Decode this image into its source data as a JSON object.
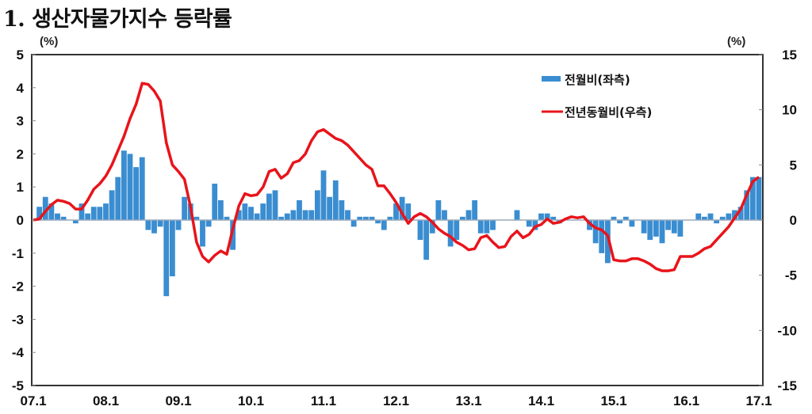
{
  "title": "1. 생산자물가지수 등락률",
  "units": {
    "left": "(%)",
    "right": "(%)"
  },
  "legend": [
    {
      "label": "전월비(좌측)",
      "color": "#3a8dd0",
      "type": "bar"
    },
    {
      "label": "전년동월비(우측)",
      "color": "#e8141b",
      "type": "line"
    }
  ],
  "chart_data": {
    "type": "bar+line",
    "title": "1. 생산자물가지수 등락률",
    "xlabel": "",
    "ylabel_left": "(%)",
    "ylabel_right": "(%)",
    "x_tick_labels": [
      "07.1",
      "08.1",
      "09.1",
      "10.1",
      "11.1",
      "12.1",
      "13.1",
      "14.1",
      "15.1",
      "16.1",
      "17.1"
    ],
    "ylim_left": [
      -5,
      5
    ],
    "yticks_left": [
      5,
      4,
      3,
      2,
      1,
      0,
      -1,
      -2,
      -3,
      -4,
      -5
    ],
    "ylim_right": [
      -15,
      15
    ],
    "yticks_right": [
      15,
      10,
      5,
      0,
      -5,
      -10,
      -15
    ],
    "grid": false,
    "legend_position": "upper right inside",
    "x_start": "2007-01",
    "x_end": "2017-01",
    "frequency": "monthly",
    "series": [
      {
        "name": "전월비(좌측)",
        "type": "bar",
        "axis": "left",
        "color": "#3a8dd0",
        "values": [
          0.0,
          0.4,
          0.7,
          0.5,
          0.2,
          0.1,
          0.0,
          -0.1,
          0.5,
          0.2,
          0.4,
          0.4,
          0.5,
          0.9,
          1.3,
          2.1,
          2.0,
          1.6,
          1.9,
          -0.3,
          -0.4,
          -0.2,
          -2.3,
          -1.7,
          -0.3,
          0.7,
          0.5,
          0.1,
          -0.8,
          -0.2,
          1.1,
          0.6,
          0.1,
          -0.9,
          0.3,
          0.5,
          0.4,
          0.2,
          0.5,
          0.8,
          0.9,
          0.1,
          0.2,
          0.3,
          0.6,
          0.3,
          0.3,
          0.9,
          1.5,
          0.7,
          1.2,
          0.6,
          0.3,
          -0.2,
          0.1,
          0.1,
          0.1,
          -0.1,
          -0.3,
          0.1,
          0.5,
          0.7,
          0.5,
          0.0,
          -0.6,
          -1.2,
          -0.4,
          0.6,
          0.3,
          -0.8,
          -0.6,
          0.1,
          0.3,
          0.6,
          -0.4,
          -0.4,
          -0.3,
          0.0,
          0.0,
          0.0,
          0.3,
          0.0,
          -0.2,
          -0.3,
          0.2,
          0.2,
          0.1,
          -0.1,
          0.0,
          0.0,
          0.0,
          0.0,
          -0.3,
          -0.7,
          -1.0,
          -1.3,
          0.1,
          -0.1,
          0.1,
          -0.2,
          0.0,
          -0.4,
          -0.6,
          -0.5,
          -0.7,
          -0.3,
          -0.4,
          -0.5,
          0.0,
          0.0,
          0.2,
          0.1,
          0.2,
          -0.1,
          0.1,
          0.2,
          0.3,
          0.4,
          0.9,
          1.3,
          1.3
        ]
      },
      {
        "name": "전년동월비(우측)",
        "type": "line",
        "axis": "right",
        "color": "#e8141b",
        "values": [
          0.0,
          0.1,
          0.8,
          1.4,
          1.8,
          1.7,
          1.5,
          1.0,
          1.0,
          1.8,
          2.8,
          3.3,
          4.0,
          5.0,
          6.3,
          7.6,
          9.2,
          10.5,
          12.4,
          12.3,
          11.7,
          10.8,
          7.0,
          5.0,
          4.4,
          3.7,
          1.2,
          -2.0,
          -3.3,
          -3.8,
          -3.2,
          -2.8,
          -3.1,
          -0.8,
          1.3,
          2.4,
          2.2,
          2.3,
          3.0,
          4.4,
          4.6,
          3.8,
          4.2,
          5.2,
          5.4,
          6.0,
          7.2,
          8.0,
          8.2,
          7.8,
          7.4,
          7.2,
          6.8,
          6.2,
          5.6,
          5.0,
          4.6,
          3.1,
          3.1,
          2.4,
          1.6,
          0.6,
          -0.3,
          0.3,
          0.6,
          0.3,
          -0.2,
          -0.8,
          -1.2,
          -1.5,
          -2.0,
          -2.3,
          -2.7,
          -2.6,
          -1.6,
          -1.4,
          -2.0,
          -2.5,
          -2.4,
          -1.5,
          -1.0,
          -1.6,
          -1.3,
          -0.6,
          -0.4,
          0.1,
          -0.3,
          -0.2,
          0.1,
          0.3,
          0.2,
          0.3,
          -0.3,
          -0.7,
          -0.9,
          -1.4,
          -3.6,
          -3.7,
          -3.7,
          -3.5,
          -3.5,
          -3.7,
          -4.0,
          -4.4,
          -4.6,
          -4.6,
          -4.5,
          -3.3,
          -3.3,
          -3.3,
          -3.0,
          -2.6,
          -2.4,
          -1.8,
          -1.2,
          -0.6,
          0.2,
          1.0,
          2.3,
          3.5,
          3.9
        ]
      }
    ]
  }
}
